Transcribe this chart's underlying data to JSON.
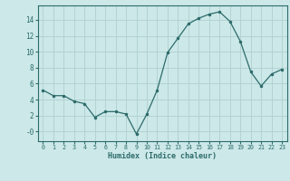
{
  "x": [
    0,
    1,
    2,
    3,
    4,
    5,
    6,
    7,
    8,
    9,
    10,
    11,
    12,
    13,
    14,
    15,
    16,
    17,
    18,
    19,
    20,
    21,
    22,
    23
  ],
  "y": [
    5.2,
    4.5,
    4.5,
    3.8,
    3.5,
    1.8,
    2.5,
    2.5,
    2.2,
    -0.3,
    2.2,
    5.2,
    9.9,
    11.7,
    13.5,
    14.2,
    14.7,
    15.0,
    13.8,
    11.3,
    7.5,
    5.7,
    7.2,
    7.8
  ],
  "line_color": "#2d6b6b",
  "marker": ".",
  "marker_size": 3,
  "bg_color": "#cce8e8",
  "grid_color": "#b0d0d0",
  "xlabel": "Humidex (Indice chaleur)",
  "xlim": [
    -0.5,
    23.5
  ],
  "ylim": [
    -1.2,
    15.8
  ],
  "yticks": [
    0,
    2,
    4,
    6,
    8,
    10,
    12,
    14
  ],
  "ytick_labels": [
    "-0",
    "2",
    "4",
    "6",
    "8",
    "10",
    "12",
    "14"
  ],
  "xticks": [
    0,
    1,
    2,
    3,
    4,
    5,
    6,
    7,
    8,
    9,
    10,
    11,
    12,
    13,
    14,
    15,
    16,
    17,
    18,
    19,
    20,
    21,
    22,
    23
  ]
}
